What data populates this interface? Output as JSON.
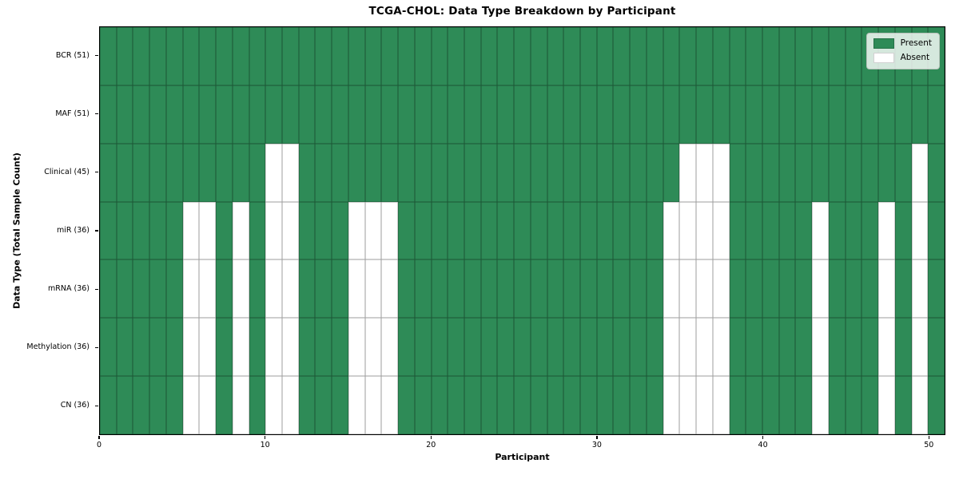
{
  "chart_data": {
    "type": "heatmap",
    "title": "TCGA-CHOL: Data Type Breakdown by Participant",
    "xlabel": "Participant",
    "ylabel": "Data Type (Total Sample Count)",
    "x_ticks": [
      0,
      10,
      20,
      30,
      40,
      50
    ],
    "x_range": [
      0,
      51
    ],
    "n_participants": 51,
    "grid": true,
    "legend_position": "upper right",
    "legend_items": [
      {
        "label": "Present",
        "color": "#2e8b57"
      },
      {
        "label": "Absent",
        "color": "#ffffff"
      }
    ],
    "colors": {
      "present": "#2e8b57",
      "absent": "#ffffff"
    },
    "rows": [
      {
        "label": "BCR (51)",
        "data_type": "BCR",
        "present_count": 51,
        "absent_participants": []
      },
      {
        "label": "MAF (51)",
        "data_type": "MAF",
        "present_count": 51,
        "absent_participants": []
      },
      {
        "label": "Clinical (45)",
        "data_type": "Clinical",
        "present_count": 45,
        "absent_participants": [
          10,
          11,
          35,
          36,
          37,
          49
        ]
      },
      {
        "label": "miR (36)",
        "data_type": "miR",
        "present_count": 36,
        "absent_participants": [
          5,
          6,
          8,
          10,
          11,
          15,
          16,
          17,
          34,
          35,
          36,
          37,
          43,
          47,
          49
        ]
      },
      {
        "label": "mRNA (36)",
        "data_type": "mRNA",
        "present_count": 36,
        "absent_participants": [
          5,
          6,
          8,
          10,
          11,
          15,
          16,
          17,
          34,
          35,
          36,
          37,
          43,
          47,
          49
        ]
      },
      {
        "label": "Methylation (36)",
        "data_type": "Methylation",
        "present_count": 36,
        "absent_participants": [
          5,
          6,
          8,
          10,
          11,
          15,
          16,
          17,
          34,
          35,
          36,
          37,
          43,
          47,
          49
        ]
      },
      {
        "label": "CN (36)",
        "data_type": "CN",
        "present_count": 36,
        "absent_participants": [
          5,
          6,
          8,
          10,
          11,
          15,
          16,
          17,
          34,
          35,
          36,
          37,
          43,
          47,
          49
        ]
      }
    ]
  }
}
